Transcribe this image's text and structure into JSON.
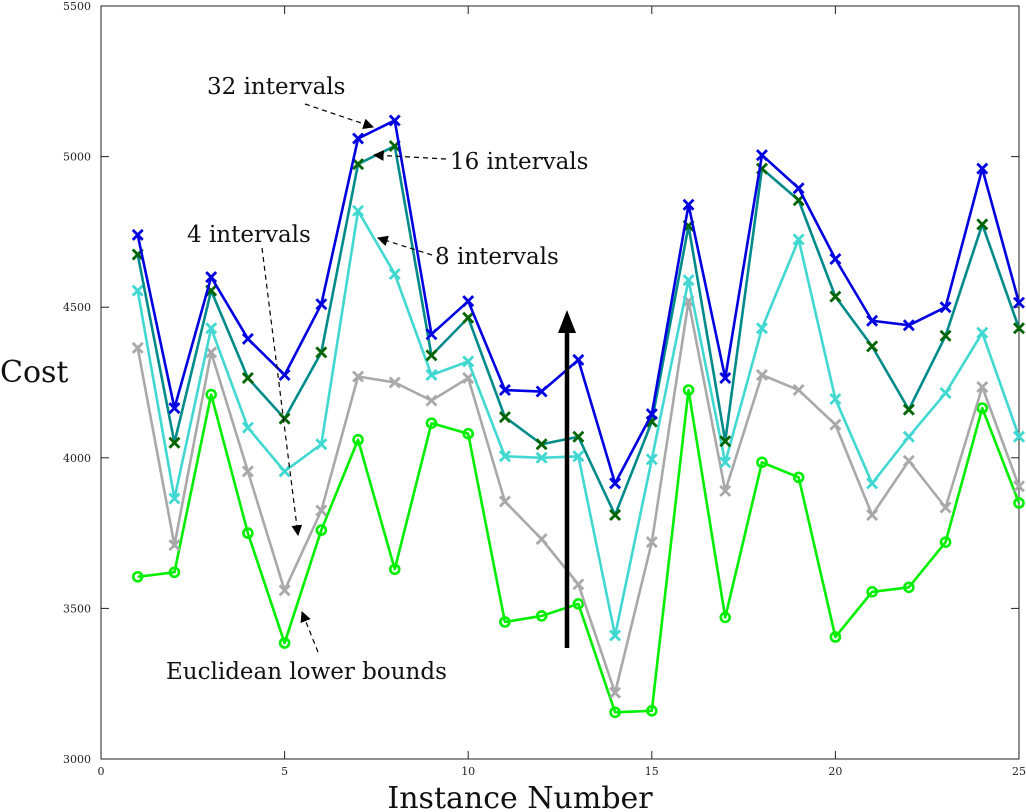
{
  "chart_data": {
    "type": "line",
    "title": "",
    "xlabel": "Instance Number",
    "ylabel": "Cost",
    "xlim": [
      0,
      25
    ],
    "ylim": [
      3000,
      5500
    ],
    "xticks": [
      0,
      5,
      10,
      15,
      20,
      25
    ],
    "yticks": [
      3000,
      3500,
      4000,
      4500,
      5000,
      5500
    ],
    "grid": false,
    "x": [
      1,
      2,
      3,
      4,
      5,
      6,
      7,
      8,
      9,
      10,
      11,
      12,
      13,
      14,
      15,
      16,
      17,
      18,
      19,
      20,
      21,
      22,
      23,
      24,
      25
    ],
    "series": [
      {
        "name": "Euclidean lower bounds",
        "color": "#00ee00",
        "marker": "circle",
        "values": [
          3605,
          3620,
          4210,
          3750,
          3385,
          3760,
          4060,
          3630,
          4115,
          4080,
          3455,
          3475,
          3515,
          3155,
          3160,
          4225,
          3470,
          3985,
          3935,
          3405,
          3555,
          3570,
          3720,
          4165,
          3850
        ]
      },
      {
        "name": "4 intervals",
        "color": "#a9a9a9",
        "marker": "x",
        "values": [
          4365,
          3710,
          4350,
          3955,
          3560,
          3825,
          4270,
          4250,
          4190,
          4265,
          3855,
          3730,
          3580,
          3220,
          3720,
          4520,
          3890,
          4275,
          4225,
          4110,
          3810,
          3990,
          3835,
          4235,
          3905
        ]
      },
      {
        "name": "8 intervals",
        "color": "#40d8d0",
        "marker": "x",
        "values": [
          4555,
          3865,
          4430,
          4100,
          3955,
          4045,
          4820,
          4610,
          4275,
          4320,
          4005,
          4000,
          4005,
          3410,
          3995,
          4590,
          3985,
          4430,
          4725,
          4195,
          3915,
          4070,
          4215,
          4415,
          4070
        ]
      },
      {
        "name": "16 intervals",
        "color": "#008b8b",
        "marker": "x",
        "markerColor": "#006400",
        "values": [
          4675,
          4050,
          4555,
          4265,
          4130,
          4350,
          4975,
          5035,
          4340,
          4465,
          4135,
          4045,
          4070,
          3810,
          4120,
          4770,
          4055,
          4960,
          4855,
          4535,
          4370,
          4160,
          4405,
          4775,
          4430
        ]
      },
      {
        "name": "32 intervals",
        "color": "#0000e0",
        "marker": "x",
        "values": [
          4740,
          4165,
          4600,
          4395,
          4275,
          4510,
          5060,
          5120,
          4410,
          4520,
          4225,
          4220,
          4325,
          3915,
          4145,
          4840,
          4265,
          5005,
          4895,
          4660,
          4455,
          4440,
          4500,
          4960,
          4515
        ]
      }
    ],
    "annotations": [
      {
        "text": "32 intervals",
        "target_series": "32 intervals",
        "target_x": 7.5
      },
      {
        "text": "16 intervals",
        "target_series": "16 intervals",
        "target_x": 7.7
      },
      {
        "text": "4 intervals",
        "target_series": "4 intervals",
        "target_x": 5.4
      },
      {
        "text": "8 intervals",
        "target_series": "8 intervals",
        "target_x": 7.4
      },
      {
        "text": "Euclidean lower bounds",
        "target_series": "Euclidean lower bounds",
        "target_x": 5.6
      }
    ]
  }
}
